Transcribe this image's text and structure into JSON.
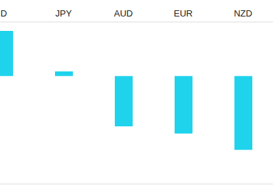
{
  "chart_data": {
    "type": "bar",
    "categories": [
      "D",
      "JPY",
      "AUD",
      "EUR",
      "NZD"
    ],
    "values": [
      2.5,
      0.25,
      -2.8,
      -3.2,
      -4.1
    ],
    "color": "#1fd3ec",
    "ylim": [
      -6,
      3
    ],
    "yticks": [
      -6,
      -5,
      -4,
      -3,
      -2,
      -1,
      0,
      1,
      2,
      3
    ],
    "grid": true,
    "tick_labels": "x"
  }
}
